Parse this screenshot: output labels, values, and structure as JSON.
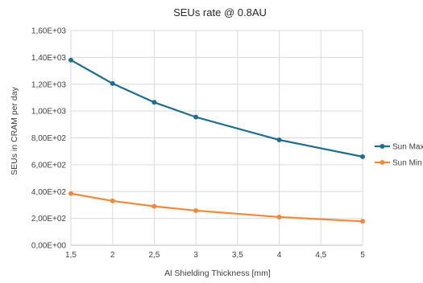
{
  "chart_data": {
    "type": "line",
    "title": "SEUs rate @ 0.8AU",
    "xlabel": "Al Shielding Thickness [mm]",
    "ylabel": "SEUs in CRAM per day",
    "xlim": [
      1.5,
      5
    ],
    "ylim": [
      0,
      1600
    ],
    "x_ticks": [
      1.5,
      2,
      2.5,
      3,
      3.5,
      4,
      4.5,
      5
    ],
    "x_tick_labels": [
      "1,5",
      "2",
      "2,5",
      "3",
      "3,5",
      "4",
      "4,5",
      "5"
    ],
    "y_ticks": [
      0,
      200,
      400,
      600,
      800,
      1000,
      1200,
      1400,
      1600
    ],
    "y_tick_labels": [
      "0,00E+00",
      "2,00E+02",
      "4,00E+02",
      "6,00E+02",
      "8,00E+02",
      "1,00E+03",
      "1,20E+03",
      "1,40E+03",
      "1,60E+03"
    ],
    "grid": true,
    "legend_position": "right",
    "series": [
      {
        "name": "Sun Max",
        "color": "#1f6e8c",
        "x": [
          1.5,
          2,
          2.5,
          3,
          4,
          5
        ],
        "y": [
          1380,
          1205,
          1065,
          955,
          785,
          660
        ]
      },
      {
        "name": "Sun Min",
        "color": "#ef8a3c",
        "x": [
          1.5,
          2,
          2.5,
          3,
          4,
          5
        ],
        "y": [
          385,
          330,
          290,
          258,
          210,
          178
        ]
      }
    ]
  }
}
